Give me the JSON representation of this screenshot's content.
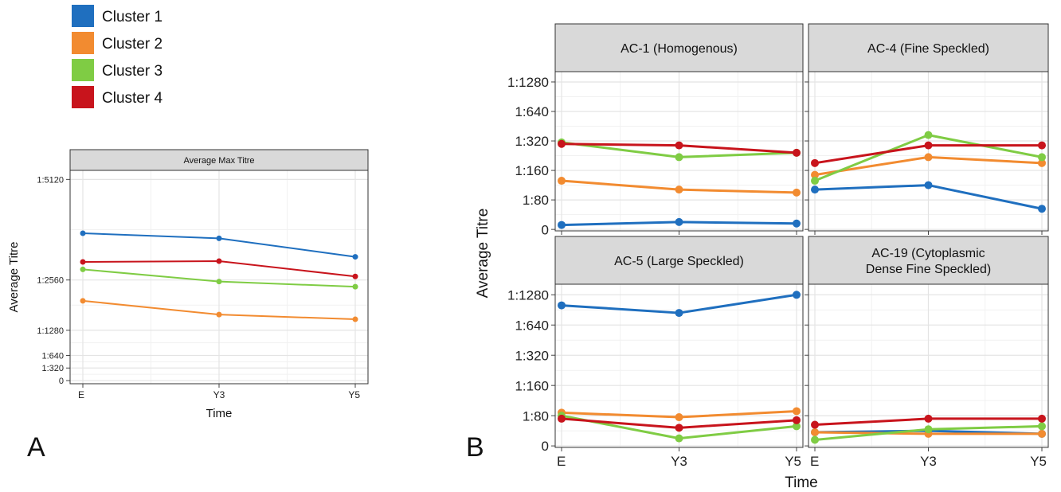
{
  "legend": [
    {
      "label": "Cluster 1",
      "color": "#1f6fbf"
    },
    {
      "label": "Cluster 2",
      "color": "#f28b30"
    },
    {
      "label": "Cluster 3",
      "color": "#7fcc44"
    },
    {
      "label": "Cluster 4",
      "color": "#c8141c"
    }
  ],
  "panel_labels": {
    "a": "A",
    "b": "B"
  },
  "chart_data": [
    {
      "type": "line",
      "panel": "A",
      "strip": "Average Max Titre",
      "xlabel": "Time",
      "ylabel": "Average Titre",
      "x": [
        "E",
        "Y3",
        "Y5"
      ],
      "ytick_labels": [
        "0",
        "1:320",
        "1:640",
        "1:1280",
        "1:2560",
        "1:5120"
      ],
      "ytick_values": [
        0,
        320,
        640,
        1280,
        2560,
        5120
      ],
      "ylim": [
        -80,
        5350
      ],
      "series": [
        {
          "name": "Cluster 1",
          "color": "#1f6fbf",
          "values": [
            3750,
            3620,
            3150
          ]
        },
        {
          "name": "Cluster 2",
          "color": "#f28b30",
          "values": [
            2030,
            1680,
            1560
          ]
        },
        {
          "name": "Cluster 3",
          "color": "#7fcc44",
          "values": [
            2830,
            2520,
            2390
          ]
        },
        {
          "name": "Cluster 4",
          "color": "#c8141c",
          "values": [
            3020,
            3040,
            2650
          ]
        }
      ]
    },
    {
      "type": "line",
      "panel": "B",
      "xlabel": "Time",
      "ylabel": "Average Titre",
      "x": [
        "E",
        "Y3",
        "Y5"
      ],
      "ytick_labels": [
        "0",
        "1:80",
        "1:160",
        "1:320",
        "1:640",
        "1:1280"
      ],
      "ytick_values": [
        0,
        1,
        2,
        3,
        4,
        5
      ],
      "ytick_note": "log2 scale with 0",
      "facets": [
        {
          "strip": [
            "AC-1 (Homogenous)"
          ],
          "series": [
            {
              "name": "Cluster 1",
              "color": "#1f6fbf",
              "values": [
                0.15,
                0.25,
                0.2
              ]
            },
            {
              "name": "Cluster 2",
              "color": "#f28b30",
              "values": [
                1.65,
                1.35,
                1.25
              ]
            },
            {
              "name": "Cluster 3",
              "color": "#7fcc44",
              "values": [
                2.95,
                2.45,
                2.6
              ]
            },
            {
              "name": "Cluster 4",
              "color": "#c8141c",
              "values": [
                2.9,
                2.85,
                2.6
              ]
            }
          ]
        },
        {
          "strip": [
            "AC-4 (Fine Speckled)"
          ],
          "series": [
            {
              "name": "Cluster 1",
              "color": "#1f6fbf",
              "values": [
                1.35,
                1.5,
                0.7
              ]
            },
            {
              "name": "Cluster 2",
              "color": "#f28b30",
              "values": [
                1.85,
                2.45,
                2.25
              ]
            },
            {
              "name": "Cluster 3",
              "color": "#7fcc44",
              "values": [
                1.65,
                3.2,
                2.45
              ]
            },
            {
              "name": "Cluster 4",
              "color": "#c8141c",
              "values": [
                2.25,
                2.85,
                2.85
              ]
            }
          ]
        },
        {
          "strip": [
            "AC-5 (Large Speckled)"
          ],
          "series": [
            {
              "name": "Cluster 1",
              "color": "#1f6fbf",
              "values": [
                4.65,
                4.4,
                5.0
              ]
            },
            {
              "name": "Cluster 2",
              "color": "#f28b30",
              "values": [
                1.1,
                0.95,
                1.15
              ]
            },
            {
              "name": "Cluster 3",
              "color": "#7fcc44",
              "values": [
                1.0,
                0.25,
                0.65
              ]
            },
            {
              "name": "Cluster 4",
              "color": "#c8141c",
              "values": [
                0.9,
                0.6,
                0.85
              ]
            }
          ]
        },
        {
          "strip": [
            "AC-19 (Cytoplasmic",
            "Dense Fine Speckled)"
          ],
          "series": [
            {
              "name": "Cluster 1",
              "color": "#1f6fbf",
              "values": [
                0.45,
                0.5,
                0.4
              ]
            },
            {
              "name": "Cluster 2",
              "color": "#f28b30",
              "values": [
                0.45,
                0.4,
                0.4
              ]
            },
            {
              "name": "Cluster 3",
              "color": "#7fcc44",
              "values": [
                0.2,
                0.55,
                0.65
              ]
            },
            {
              "name": "Cluster 4",
              "color": "#c8141c",
              "values": [
                0.7,
                0.9,
                0.9
              ]
            }
          ]
        }
      ]
    }
  ]
}
